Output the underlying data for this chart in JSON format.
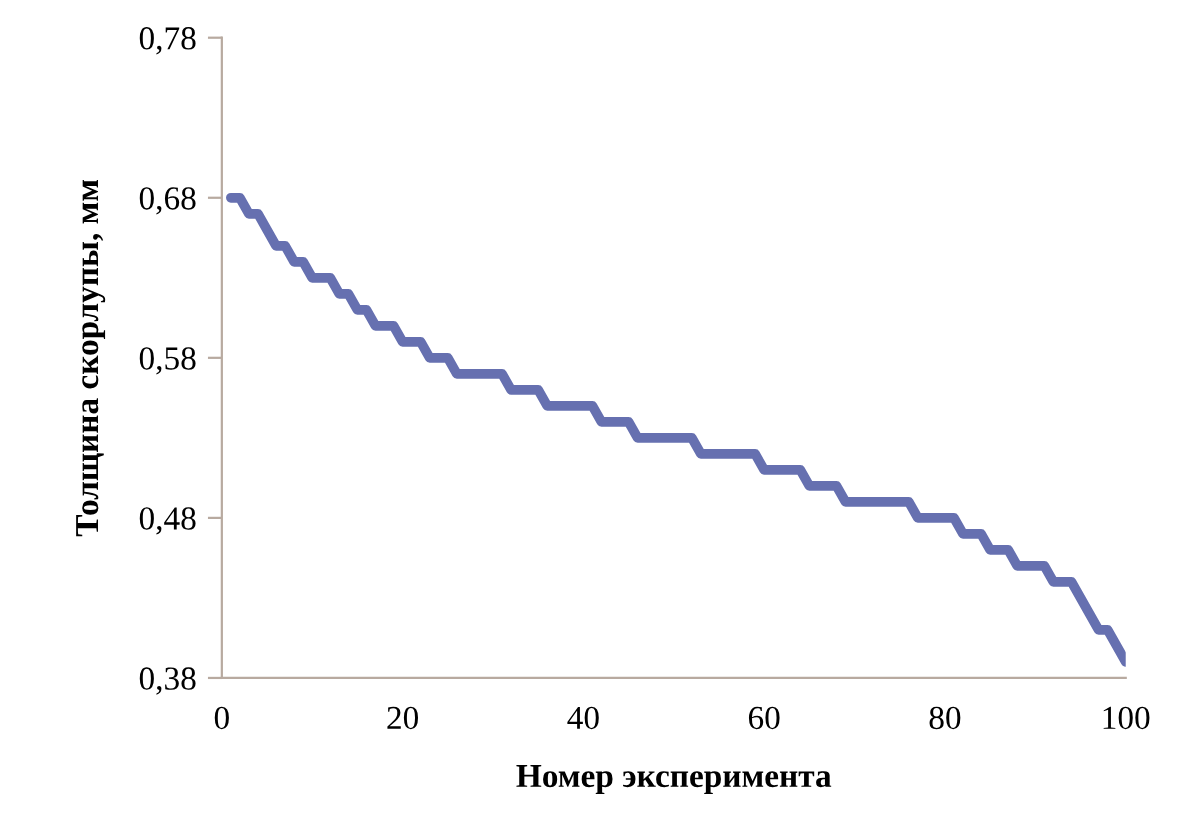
{
  "chart_data": {
    "type": "line",
    "xlabel": "Номер эксперимента",
    "ylabel": "Толщина скорлупы, мм",
    "x": [
      1,
      2,
      3,
      4,
      5,
      6,
      7,
      8,
      9,
      10,
      11,
      12,
      13,
      14,
      15,
      16,
      17,
      18,
      19,
      20,
      21,
      22,
      23,
      24,
      25,
      26,
      27,
      28,
      29,
      30,
      31,
      32,
      33,
      34,
      35,
      36,
      37,
      38,
      39,
      40,
      41,
      42,
      43,
      44,
      45,
      46,
      47,
      48,
      49,
      50,
      51,
      52,
      53,
      54,
      55,
      56,
      57,
      58,
      59,
      60,
      61,
      62,
      63,
      64,
      65,
      66,
      67,
      68,
      69,
      70,
      71,
      72,
      73,
      74,
      75,
      76,
      77,
      78,
      79,
      80,
      81,
      82,
      83,
      84,
      85,
      86,
      87,
      88,
      89,
      90,
      91,
      92,
      93,
      94,
      95,
      96,
      97,
      98,
      99,
      100
    ],
    "series": [
      {
        "color": "#6670b0",
        "values": [
          0.68,
          0.68,
          0.67,
          0.67,
          0.66,
          0.65,
          0.65,
          0.64,
          0.64,
          0.63,
          0.63,
          0.63,
          0.62,
          0.62,
          0.61,
          0.61,
          0.6,
          0.6,
          0.6,
          0.59,
          0.59,
          0.59,
          0.58,
          0.58,
          0.58,
          0.57,
          0.57,
          0.57,
          0.57,
          0.57,
          0.57,
          0.56,
          0.56,
          0.56,
          0.56,
          0.55,
          0.55,
          0.55,
          0.55,
          0.55,
          0.55,
          0.54,
          0.54,
          0.54,
          0.54,
          0.53,
          0.53,
          0.53,
          0.53,
          0.53,
          0.53,
          0.53,
          0.52,
          0.52,
          0.52,
          0.52,
          0.52,
          0.52,
          0.52,
          0.51,
          0.51,
          0.51,
          0.51,
          0.51,
          0.5,
          0.5,
          0.5,
          0.5,
          0.49,
          0.49,
          0.49,
          0.49,
          0.49,
          0.49,
          0.49,
          0.49,
          0.48,
          0.48,
          0.48,
          0.48,
          0.48,
          0.47,
          0.47,
          0.47,
          0.46,
          0.46,
          0.46,
          0.45,
          0.45,
          0.45,
          0.45,
          0.44,
          0.44,
          0.44,
          0.43,
          0.42,
          0.41,
          0.41,
          0.4,
          0.39
        ]
      }
    ],
    "xlim": [
      0,
      100
    ],
    "xticks": [
      0,
      20,
      40,
      60,
      80,
      100
    ],
    "ylim": [
      0.38,
      0.78
    ],
    "yticks": [
      {
        "value": 0.38,
        "label": "0,38"
      },
      {
        "value": 0.48,
        "label": "0,48"
      },
      {
        "value": 0.58,
        "label": "0,58"
      },
      {
        "value": 0.68,
        "label": "0,68"
      },
      {
        "value": 0.78,
        "label": "0,78"
      }
    ],
    "grid": false,
    "marker": "none",
    "line_style": "solid"
  }
}
